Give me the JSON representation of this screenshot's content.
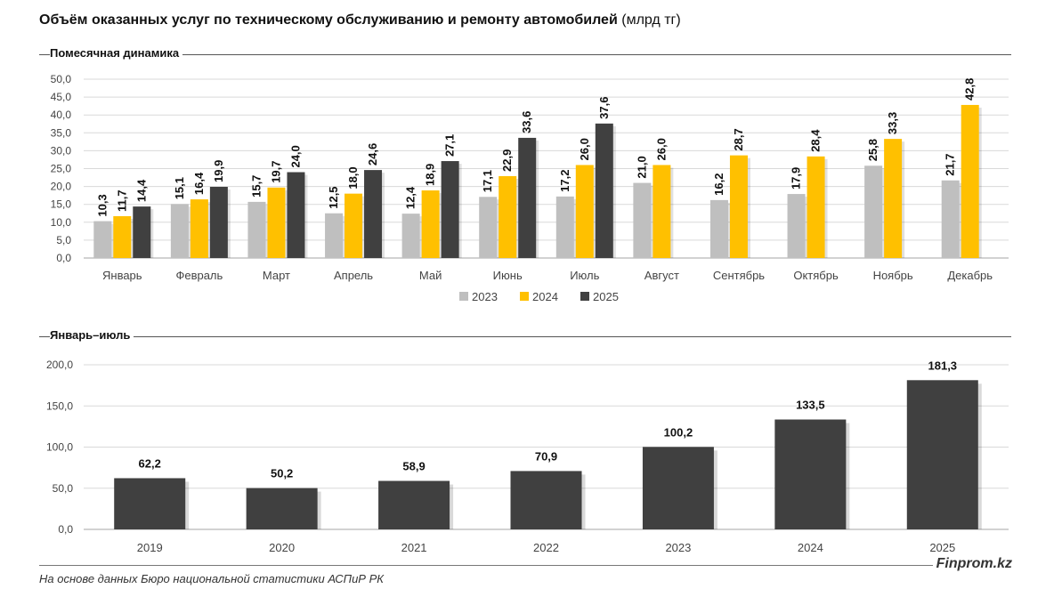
{
  "page": {
    "title_bold": "Объём оказанных услуг по техническому обслуживанию и ремонту автомобилей",
    "title_unit": "(млрд тг)",
    "source": "На основе данных Бюро национальной статистики АСПиР РК",
    "brand": "Finprom.kz"
  },
  "colors": {
    "2023": "#bfbfbf",
    "2024": "#ffc000",
    "2025": "#404040",
    "grid": "#d9d9d9",
    "axis": "#a6a6a6"
  },
  "chart_data": [
    {
      "type": "bar",
      "title": "Помесячная динамика",
      "categories": [
        "Январь",
        "Февраль",
        "Март",
        "Апрель",
        "Май",
        "Июнь",
        "Июль",
        "Август",
        "Сентябрь",
        "Октябрь",
        "Ноябрь",
        "Декабрь"
      ],
      "series": [
        {
          "name": "2023",
          "values": [
            10.3,
            15.1,
            15.7,
            12.5,
            12.4,
            17.1,
            17.2,
            21.0,
            16.2,
            17.9,
            25.8,
            21.7
          ]
        },
        {
          "name": "2024",
          "values": [
            11.7,
            16.4,
            19.7,
            18.0,
            18.9,
            22.9,
            26.0,
            26.0,
            28.7,
            28.4,
            33.3,
            42.8
          ]
        },
        {
          "name": "2025",
          "values": [
            14.4,
            19.9,
            24.0,
            24.6,
            27.1,
            33.6,
            37.6,
            null,
            null,
            null,
            null,
            null
          ]
        }
      ],
      "ylim": [
        0,
        50
      ],
      "yticks": [
        "0,0",
        "5,0",
        "10,0",
        "15,0",
        "20,0",
        "25,0",
        "30,0",
        "35,0",
        "40,0",
        "45,0",
        "50,0"
      ],
      "grid": true,
      "legend": "bottom"
    },
    {
      "type": "bar",
      "title": "Январь–июль",
      "categories": [
        "2019",
        "2020",
        "2021",
        "2022",
        "2023",
        "2024",
        "2025"
      ],
      "values": [
        62.2,
        50.2,
        58.9,
        70.9,
        100.2,
        133.5,
        181.3
      ],
      "ylim": [
        0,
        200
      ],
      "yticks": [
        "0,0",
        "50,0",
        "100,0",
        "150,0",
        "200,0"
      ],
      "grid": true,
      "legend": "none"
    }
  ]
}
